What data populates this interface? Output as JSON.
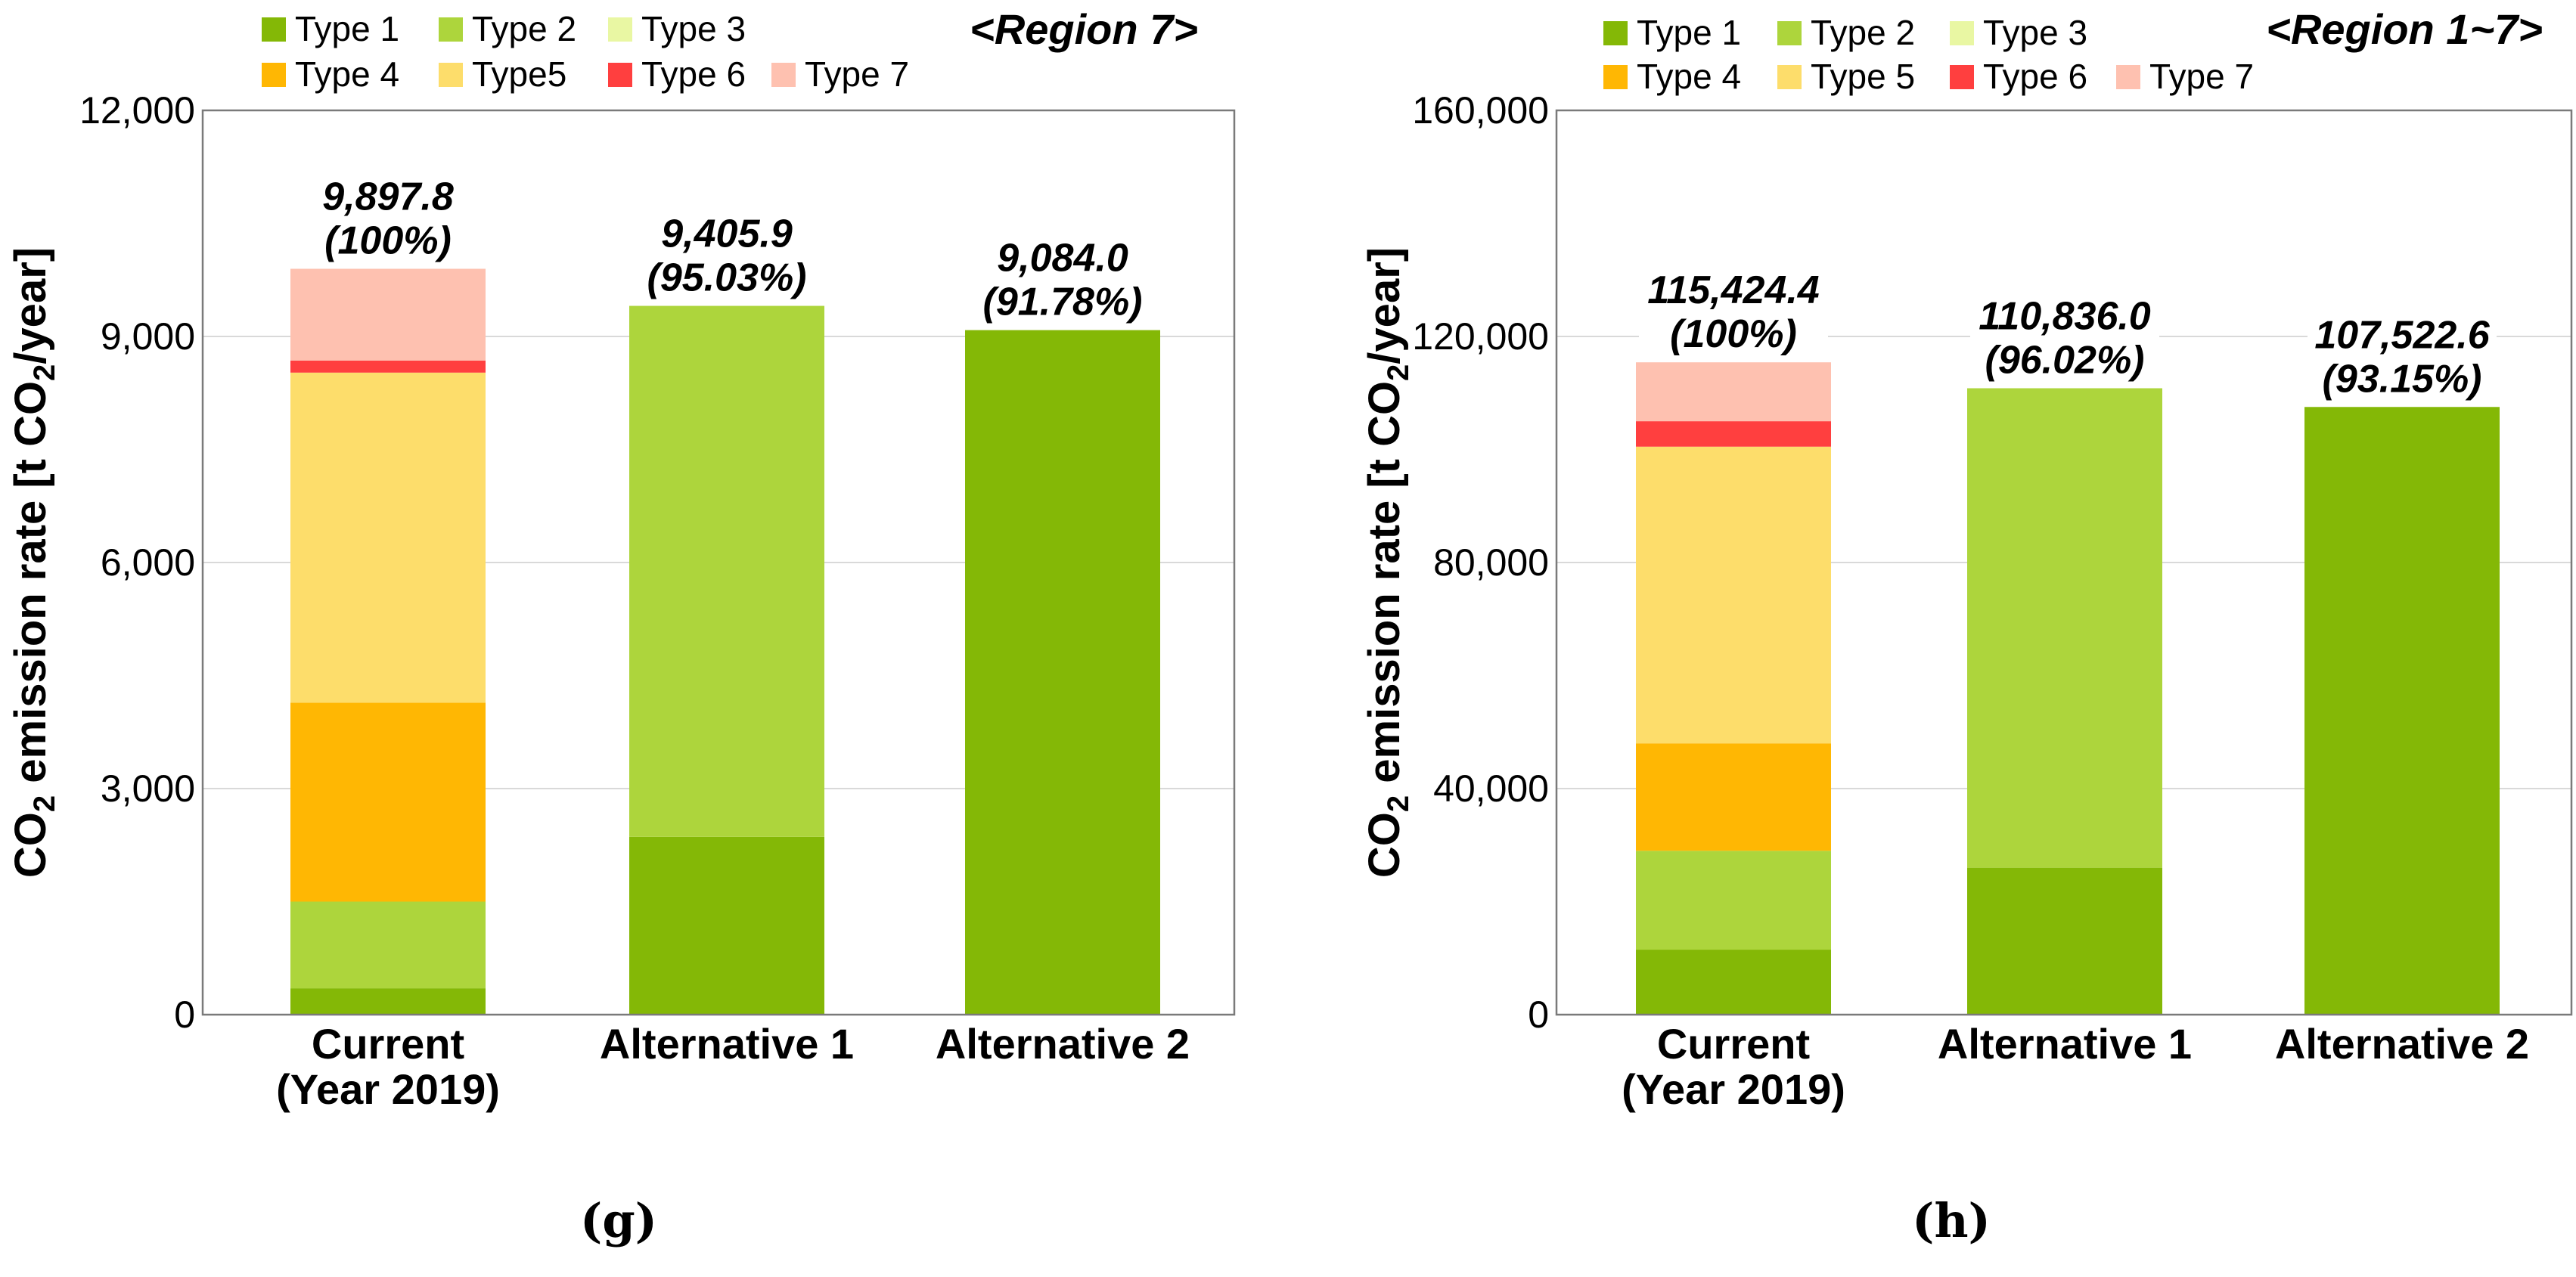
{
  "chart_data": [
    {
      "type": "bar",
      "stacked": true,
      "panel": "(g)",
      "title": "<Region 7>",
      "ylabel_prefix": "CO",
      "ylabel_sub": "2",
      "ylabel_mid": " emission rate [t CO",
      "ylabel_sub2": "2",
      "ylabel_suffix": "/year]",
      "ylim": [
        0,
        12000
      ],
      "yticks": [
        0,
        3000,
        6000,
        9000,
        12000
      ],
      "ytick_labels": [
        "0",
        "3,000",
        "6,000",
        "9,000",
        "12,000"
      ],
      "categories": [
        [
          "Current",
          "(Year 2019)"
        ],
        [
          "Alternative 1"
        ],
        [
          "Alternative 2"
        ]
      ],
      "legend": [
        "Type 1",
        "Type 2",
        "Type 3",
        "Type 4",
        "Type5",
        "Type 6",
        "Type 7"
      ],
      "series": [
        {
          "name": "Type 1",
          "color": "#84b806",
          "values": [
            350,
            2360,
            9084.0
          ]
        },
        {
          "name": "Type 2",
          "color": "#add53c",
          "values": [
            1150,
            7045.9,
            0
          ]
        },
        {
          "name": "Type 3",
          "color": "#e9f7a3",
          "values": [
            0,
            0,
            0
          ]
        },
        {
          "name": "Type 4",
          "color": "#ffb703",
          "values": [
            2640,
            0,
            0
          ]
        },
        {
          "name": "Type 5",
          "color": "#fddd6b",
          "values": [
            4380,
            0,
            0
          ]
        },
        {
          "name": "Type 6",
          "color": "#ff3f3f",
          "values": [
            160,
            0,
            0
          ]
        },
        {
          "name": "Type 7",
          "color": "#fec1b0",
          "values": [
            1217.8,
            0,
            0
          ]
        }
      ],
      "totals": [
        9897.8,
        9405.9,
        9084.0
      ],
      "total_labels": [
        "9,897.8",
        "9,405.9",
        "9,084.0"
      ],
      "pct_labels": [
        "(100%)",
        "(95.03%)",
        "(91.78%)"
      ]
    },
    {
      "type": "bar",
      "stacked": true,
      "panel": "(h)",
      "title": "<Region 1~7>",
      "ylabel_prefix": "CO",
      "ylabel_sub": "2",
      "ylabel_mid": " emission rate [t CO",
      "ylabel_sub2": "2",
      "ylabel_suffix": "/year]",
      "ylim": [
        0,
        160000
      ],
      "yticks": [
        0,
        40000,
        80000,
        120000,
        160000
      ],
      "ytick_labels": [
        "0",
        "40,000",
        "80,000",
        "120,000",
        "160,000"
      ],
      "categories": [
        [
          "Current",
          "(Year 2019)"
        ],
        [
          "Alternative 1"
        ],
        [
          "Alternative 2"
        ]
      ],
      "legend": [
        "Type 1",
        "Type 2",
        "Type 3",
        "Type 4",
        "Type 5",
        "Type 6",
        "Type 7"
      ],
      "series": [
        {
          "name": "Type 1",
          "color": "#84b806",
          "values": [
            11500,
            26000,
            107522.6
          ]
        },
        {
          "name": "Type 2",
          "color": "#add53c",
          "values": [
            17500,
            84836.0,
            0
          ]
        },
        {
          "name": "Type 3",
          "color": "#e9f7a3",
          "values": [
            0,
            0,
            0
          ]
        },
        {
          "name": "Type 4",
          "color": "#ffb703",
          "values": [
            19000,
            0,
            0
          ]
        },
        {
          "name": "Type 5",
          "color": "#fddd6b",
          "values": [
            52500,
            0,
            0
          ]
        },
        {
          "name": "Type 6",
          "color": "#ff3f3f",
          "values": [
            4500,
            0,
            0
          ]
        },
        {
          "name": "Type 7",
          "color": "#fec1b0",
          "values": [
            10424.4,
            0,
            0
          ]
        }
      ],
      "totals": [
        115424.4,
        110836.0,
        107522.6
      ],
      "total_labels": [
        "115,424.4",
        "110,836.0",
        "107,522.6"
      ],
      "pct_labels": [
        "(100%)",
        "(96.02%)",
        "(93.15%)"
      ]
    }
  ]
}
